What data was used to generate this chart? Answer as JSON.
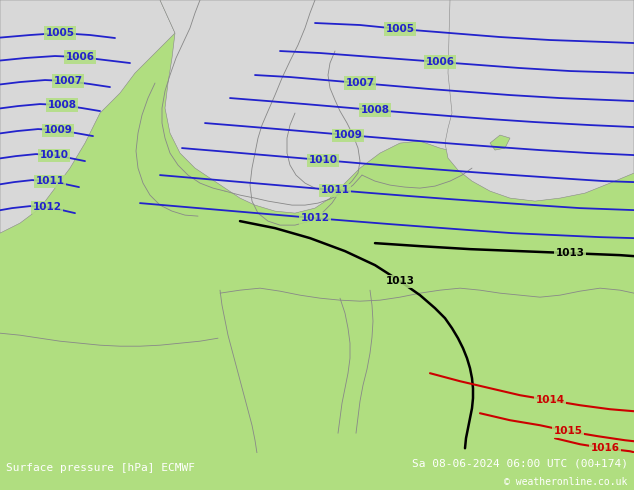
{
  "title_left": "Surface pressure [hPa] ECMWF",
  "title_right": "Sa 08-06-2024 06:00 UTC (00+174)",
  "copyright": "© weatheronline.co.uk",
  "bg_color": "#b0de80",
  "sea_color": "#d8d8d8",
  "coastline_color": "#888888",
  "blue_color": "#2222cc",
  "black_color": "#000000",
  "red_color": "#cc0000",
  "lw_blue": 1.3,
  "lw_black": 1.8,
  "lw_red": 1.5,
  "lw_coast": 0.6,
  "footer_bg": "#000000",
  "footer_fg": "#ffffff",
  "label_fs": 7.5,
  "footer_fs": 8.0
}
